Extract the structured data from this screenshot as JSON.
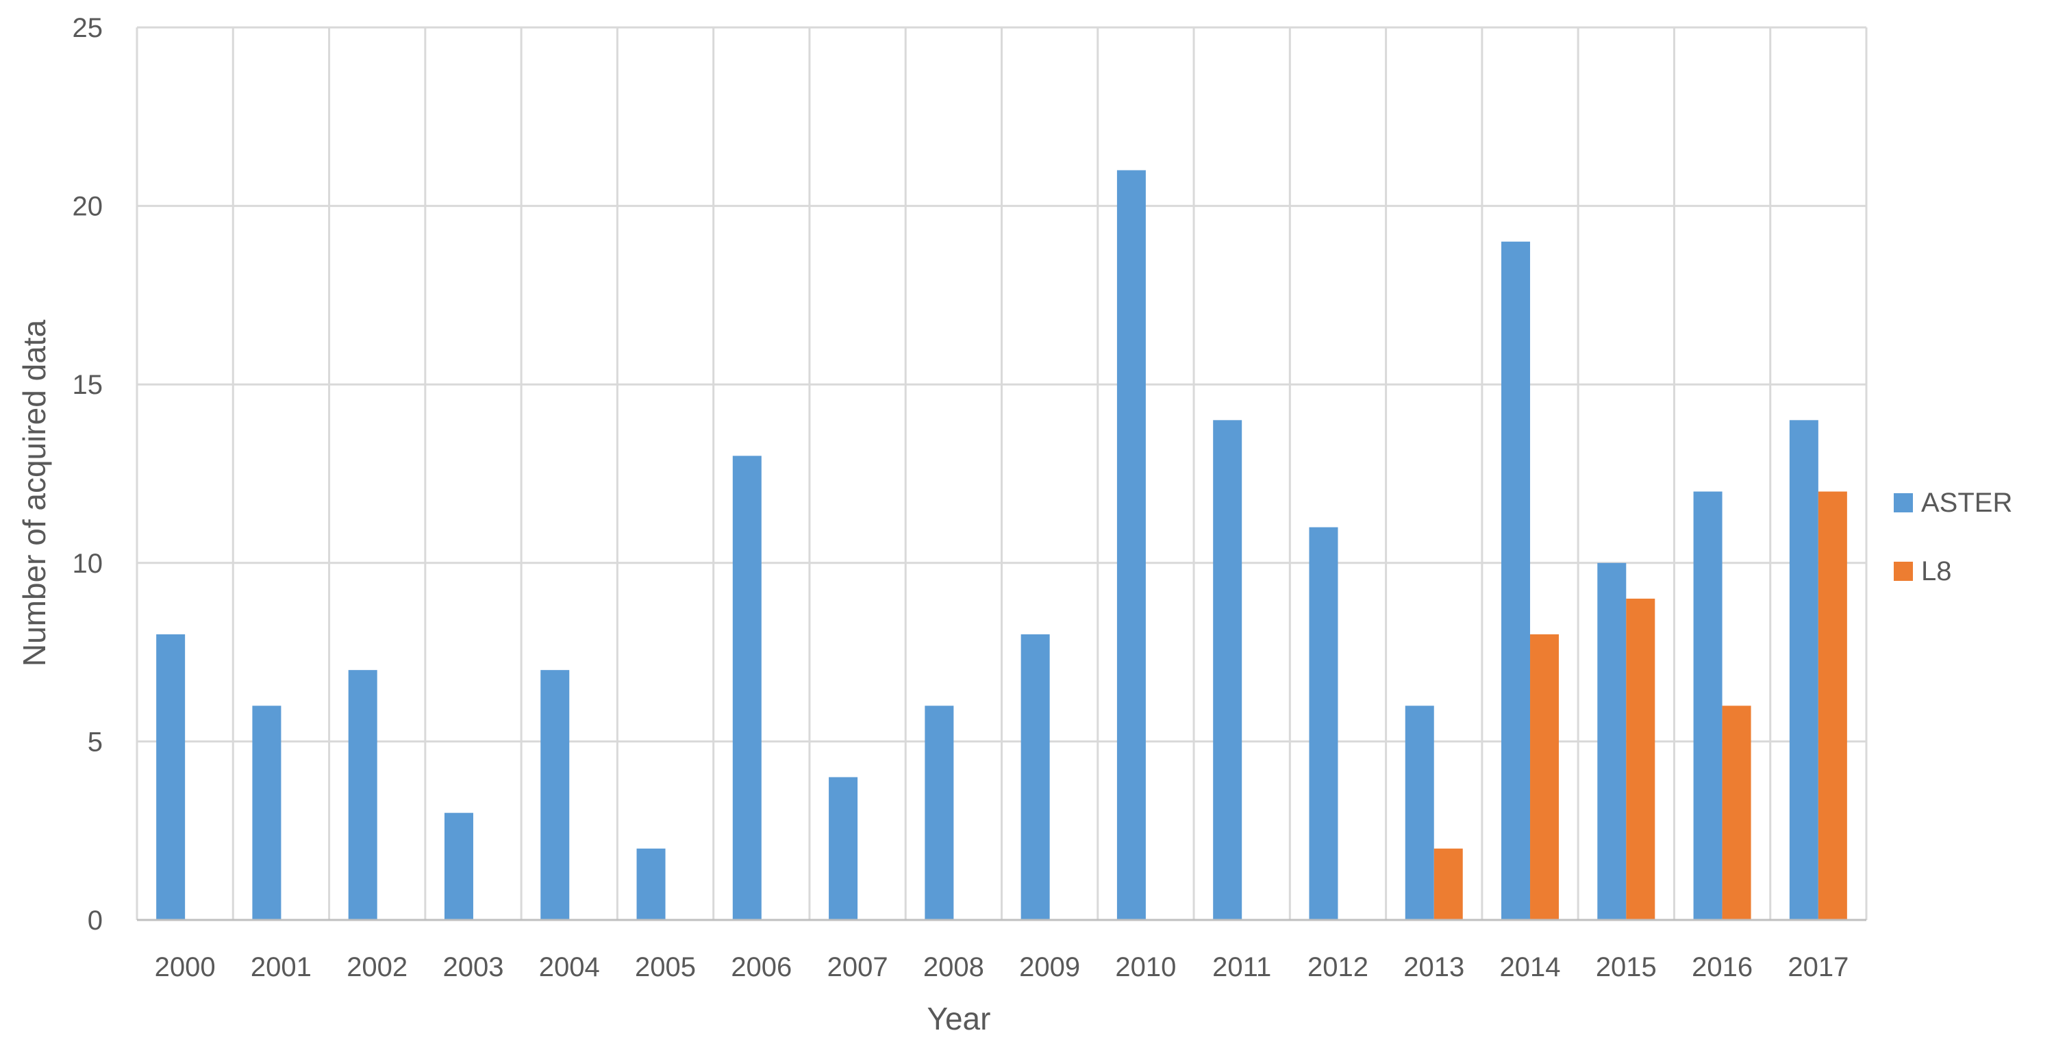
{
  "chart_data": {
    "type": "bar",
    "title": "",
    "xlabel": "Year",
    "ylabel": "Number of  acquired data",
    "ylim": [
      0,
      25
    ],
    "yticks": [
      "0",
      "5",
      "10",
      "15",
      "20",
      "25"
    ],
    "grid": true,
    "legend_position": "right",
    "categories": [
      "2000",
      "2001",
      "2002",
      "2003",
      "2004",
      "2005",
      "2006",
      "2007",
      "2008",
      "2009",
      "2010",
      "2011",
      "2012",
      "2013",
      "2014",
      "2015",
      "2016",
      "2017"
    ],
    "series": [
      {
        "name": "ASTER",
        "color": "#5B9BD5",
        "values": [
          8,
          6,
          7,
          3,
          7,
          2,
          13,
          4,
          6,
          8,
          21,
          14,
          11,
          6,
          19,
          10,
          12,
          14
        ]
      },
      {
        "name": "L8",
        "color": "#ED7D31",
        "values": [
          0,
          0,
          0,
          0,
          0,
          0,
          0,
          0,
          0,
          0,
          0,
          0,
          0,
          2,
          8,
          9,
          6,
          12
        ]
      }
    ]
  }
}
